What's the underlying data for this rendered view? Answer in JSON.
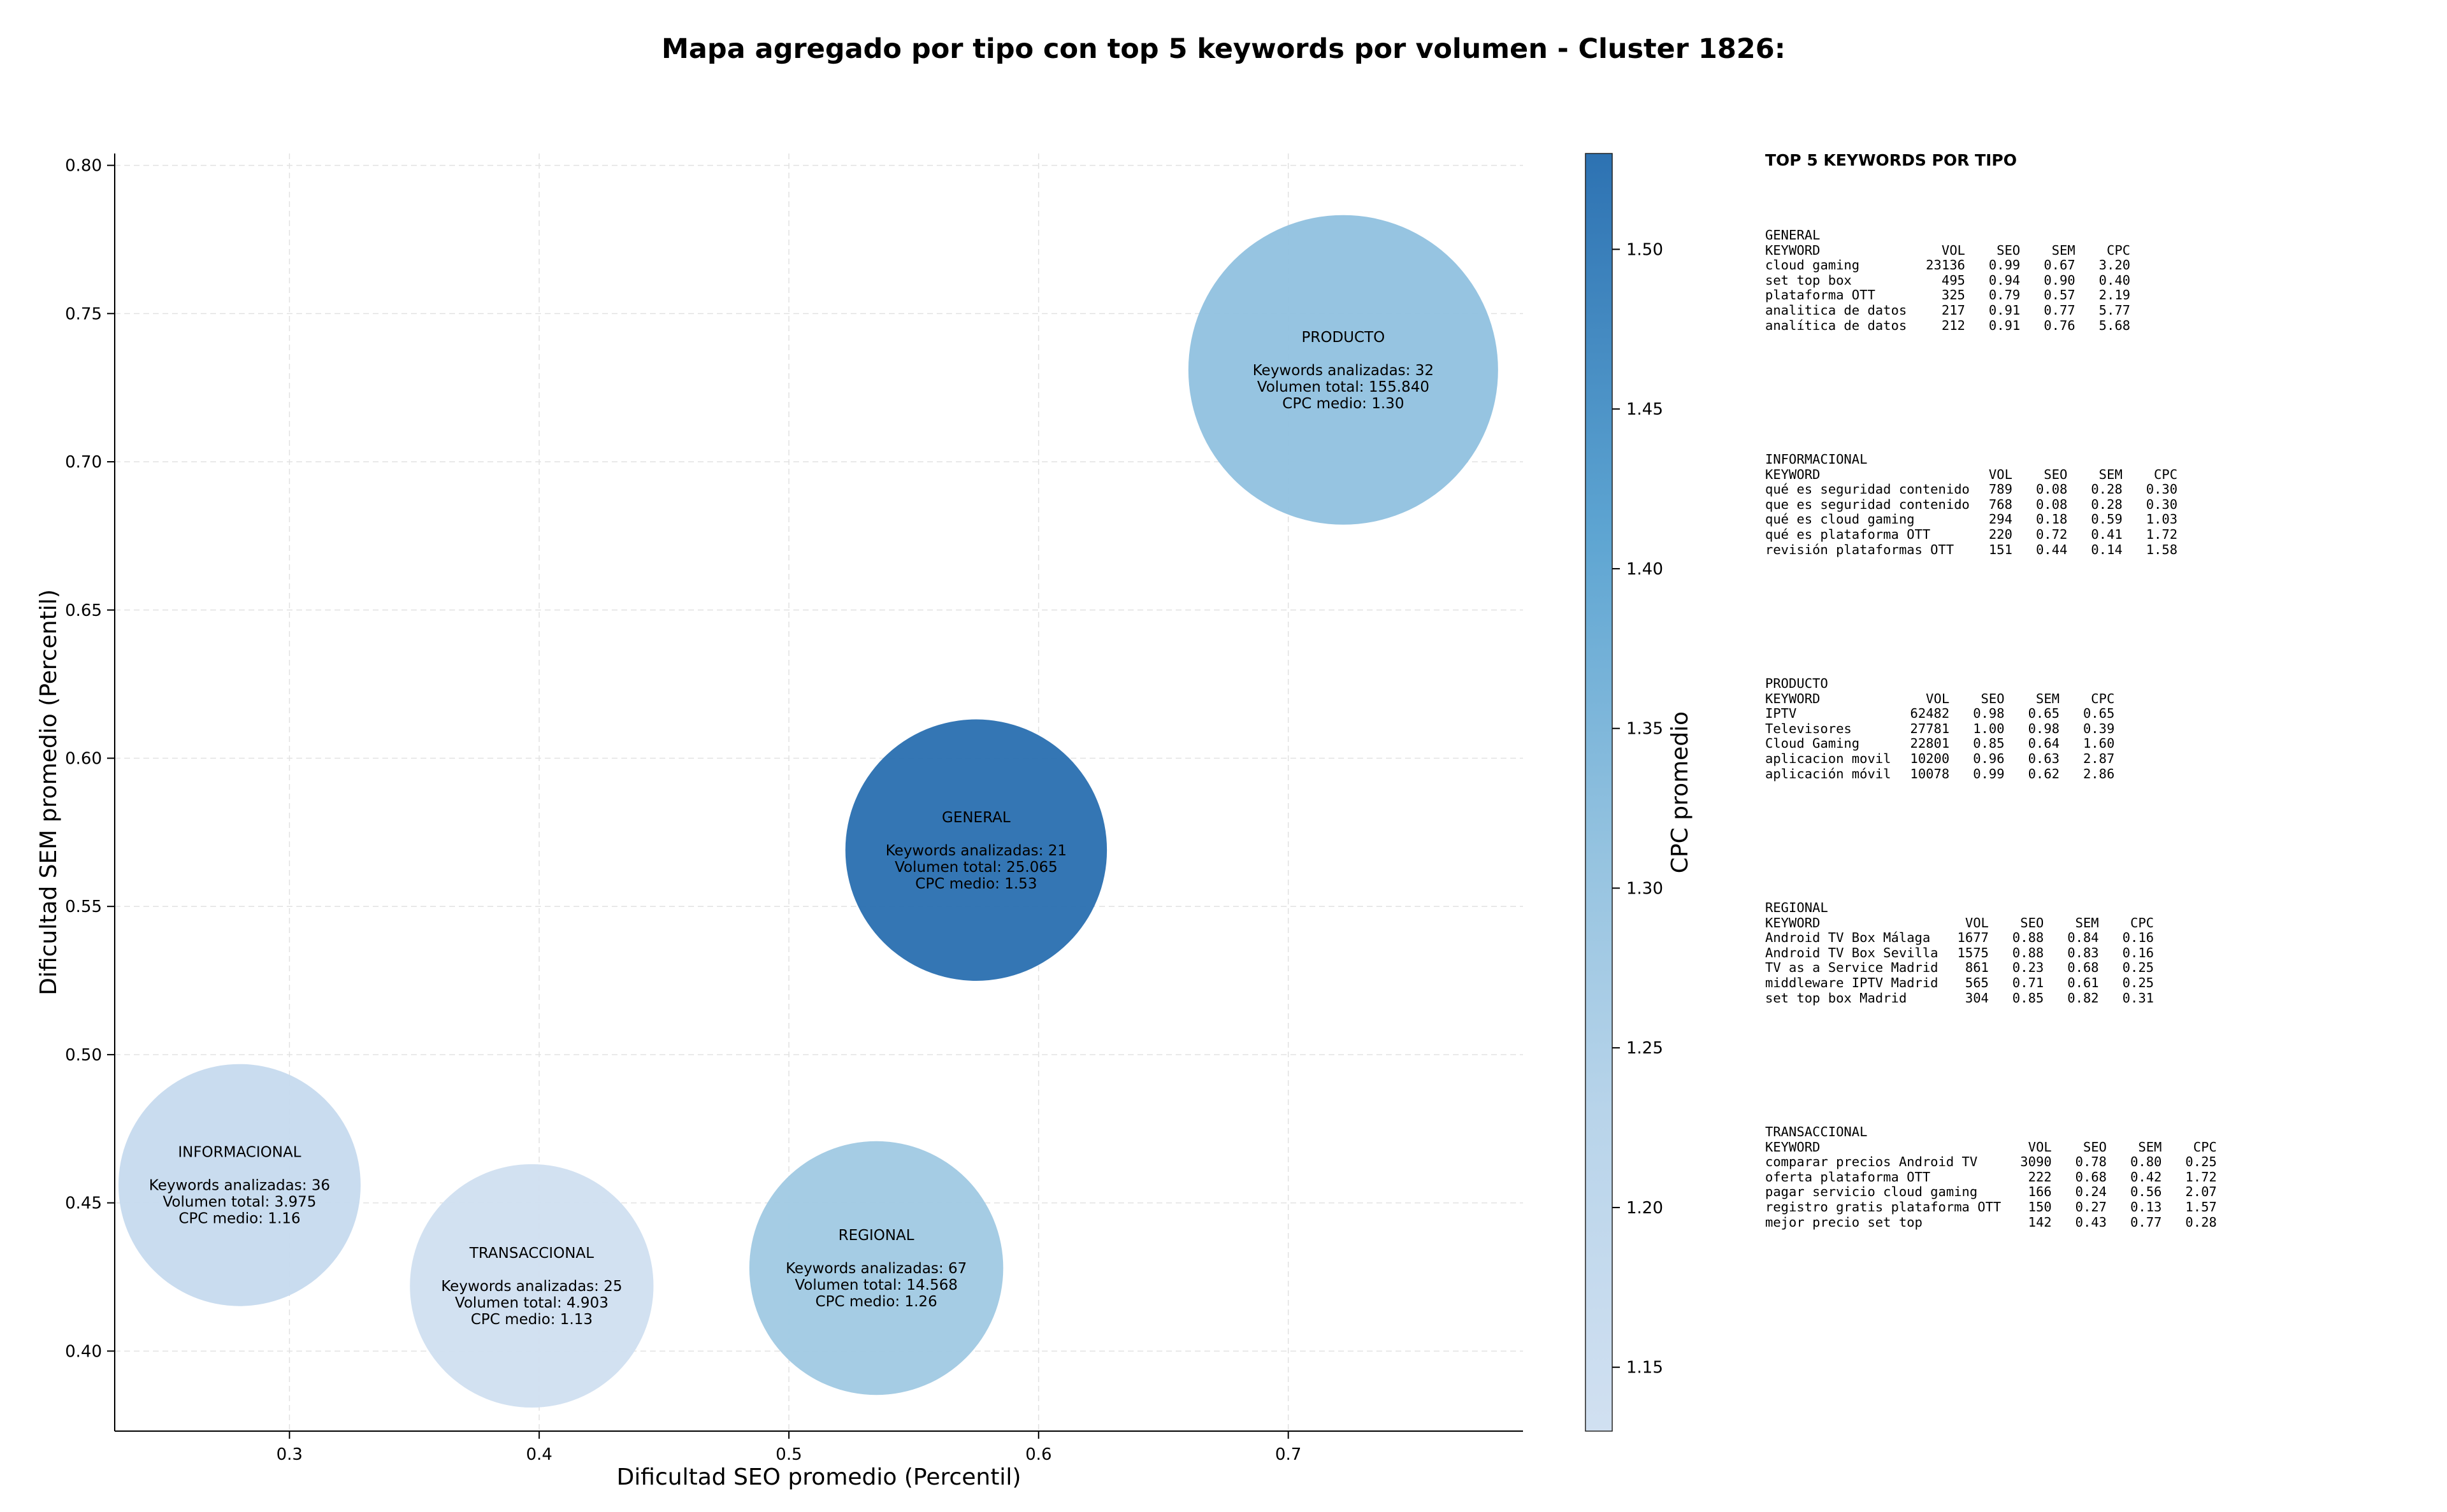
{
  "chart_data": {
    "type": "scatter",
    "subtype": "bubble",
    "title": "Mapa agregado por tipo con top 5 keywords por volumen - Cluster 1826:",
    "xlabel": "Dificultad SEO promedio (Percentil)",
    "ylabel": "Dificultad SEM promedio (Percentil)",
    "colorbar_label": "CPC promedio",
    "xlim": [
      0.23,
      0.794
    ],
    "ylim": [
      0.373,
      0.804
    ],
    "xticks": [
      "0.3",
      "0.4",
      "0.5",
      "0.6",
      "0.7"
    ],
    "yticks": [
      "0.40",
      "0.45",
      "0.50",
      "0.55",
      "0.60",
      "0.65",
      "0.70",
      "0.75",
      "0.80"
    ],
    "colorbar_range": [
      1.13,
      1.53
    ],
    "colorbar_ticks": [
      "1.15",
      "1.20",
      "1.25",
      "1.30",
      "1.35",
      "1.40",
      "1.45",
      "1.50"
    ],
    "grid": true,
    "bubble_size_encodes": "Volumen total",
    "bubbles": [
      {
        "name": "PRODUCTO",
        "x": 0.722,
        "y": 0.731,
        "keywords": 32,
        "volume": 155840,
        "cpc": 1.3,
        "label_lines": [
          "PRODUCTO",
          "",
          "Keywords analizadas: 32",
          "Volumen total: 155.840",
          "CPC medio: 1.30"
        ]
      },
      {
        "name": "GENERAL",
        "x": 0.575,
        "y": 0.569,
        "keywords": 21,
        "volume": 25065,
        "cpc": 1.53,
        "label_lines": [
          "GENERAL",
          "",
          "Keywords analizadas: 21",
          "Volumen total: 25.065",
          "CPC medio: 1.53"
        ]
      },
      {
        "name": "INFORMACIONAL",
        "x": 0.28,
        "y": 0.456,
        "keywords": 36,
        "volume": 3975,
        "cpc": 1.16,
        "label_lines": [
          "INFORMACIONAL",
          "",
          "Keywords analizadas: 36",
          "Volumen total: 3.975",
          "CPC medio: 1.16"
        ]
      },
      {
        "name": "TRANSACCIONAL",
        "x": 0.397,
        "y": 0.422,
        "keywords": 25,
        "volume": 4903,
        "cpc": 1.13,
        "label_lines": [
          "TRANSACCIONAL",
          "",
          "Keywords analizadas: 25",
          "Volumen total: 4.903",
          "CPC medio: 1.13"
        ]
      },
      {
        "name": "REGIONAL",
        "x": 0.535,
        "y": 0.428,
        "keywords": 67,
        "volume": 14568,
        "cpc": 1.26,
        "label_lines": [
          "REGIONAL",
          "",
          "Keywords analizadas: 67",
          "Volumen total: 14.568",
          "CPC medio: 1.26"
        ]
      }
    ],
    "colormap": [
      "#d1e0f1",
      "#aed0e6",
      "#87bcdd",
      "#4f9bcb",
      "#2d72b2"
    ]
  },
  "panel": {
    "title": "TOP 5 KEYWORDS POR TIPO",
    "columns": [
      "KEYWORD",
      "VOL",
      "SEO",
      "SEM",
      "CPC"
    ],
    "groups": [
      {
        "name": "GENERAL",
        "rows": [
          [
            "cloud gaming",
            "23136",
            "0.99",
            "0.67",
            "3.20"
          ],
          [
            "set top box",
            "495",
            "0.94",
            "0.90",
            "0.40"
          ],
          [
            "plataforma OTT",
            "325",
            "0.79",
            "0.57",
            "2.19"
          ],
          [
            "analitica de datos",
            "217",
            "0.91",
            "0.77",
            "5.77"
          ],
          [
            "analítica de datos",
            "212",
            "0.91",
            "0.76",
            "5.68"
          ]
        ]
      },
      {
        "name": "INFORMACIONAL",
        "rows": [
          [
            "qué es seguridad contenido",
            "789",
            "0.08",
            "0.28",
            "0.30"
          ],
          [
            "que es seguridad contenido",
            "768",
            "0.08",
            "0.28",
            "0.30"
          ],
          [
            "qué es cloud gaming",
            "294",
            "0.18",
            "0.59",
            "1.03"
          ],
          [
            "qué es plataforma OTT",
            "220",
            "0.72",
            "0.41",
            "1.72"
          ],
          [
            "revisión plataformas OTT",
            "151",
            "0.44",
            "0.14",
            "1.58"
          ]
        ]
      },
      {
        "name": "PRODUCTO",
        "rows": [
          [
            "IPTV",
            "62482",
            "0.98",
            "0.65",
            "0.65"
          ],
          [
            "Televisores",
            "27781",
            "1.00",
            "0.98",
            "0.39"
          ],
          [
            "Cloud Gaming",
            "22801",
            "0.85",
            "0.64",
            "1.60"
          ],
          [
            "aplicacion movil",
            "10200",
            "0.96",
            "0.63",
            "2.87"
          ],
          [
            "aplicación móvil",
            "10078",
            "0.99",
            "0.62",
            "2.86"
          ]
        ]
      },
      {
        "name": "REGIONAL",
        "rows": [
          [
            "Android TV Box Málaga",
            "1677",
            "0.88",
            "0.84",
            "0.16"
          ],
          [
            "Android TV Box Sevilla",
            "1575",
            "0.88",
            "0.83",
            "0.16"
          ],
          [
            "TV as a Service Madrid",
            "861",
            "0.23",
            "0.68",
            "0.25"
          ],
          [
            "middleware IPTV Madrid",
            "565",
            "0.71",
            "0.61",
            "0.25"
          ],
          [
            "set top box Madrid",
            "304",
            "0.85",
            "0.82",
            "0.31"
          ]
        ]
      },
      {
        "name": "TRANSACCIONAL",
        "rows": [
          [
            "comparar precios Android TV",
            "3090",
            "0.78",
            "0.80",
            "0.25"
          ],
          [
            "oferta plataforma OTT",
            "222",
            "0.68",
            "0.42",
            "1.72"
          ],
          [
            "pagar servicio cloud gaming",
            "166",
            "0.24",
            "0.56",
            "2.07"
          ],
          [
            "registro gratis plataforma OTT",
            "150",
            "0.27",
            "0.13",
            "1.57"
          ],
          [
            "mejor precio set top",
            "142",
            "0.43",
            "0.77",
            "0.28"
          ]
        ]
      }
    ]
  }
}
